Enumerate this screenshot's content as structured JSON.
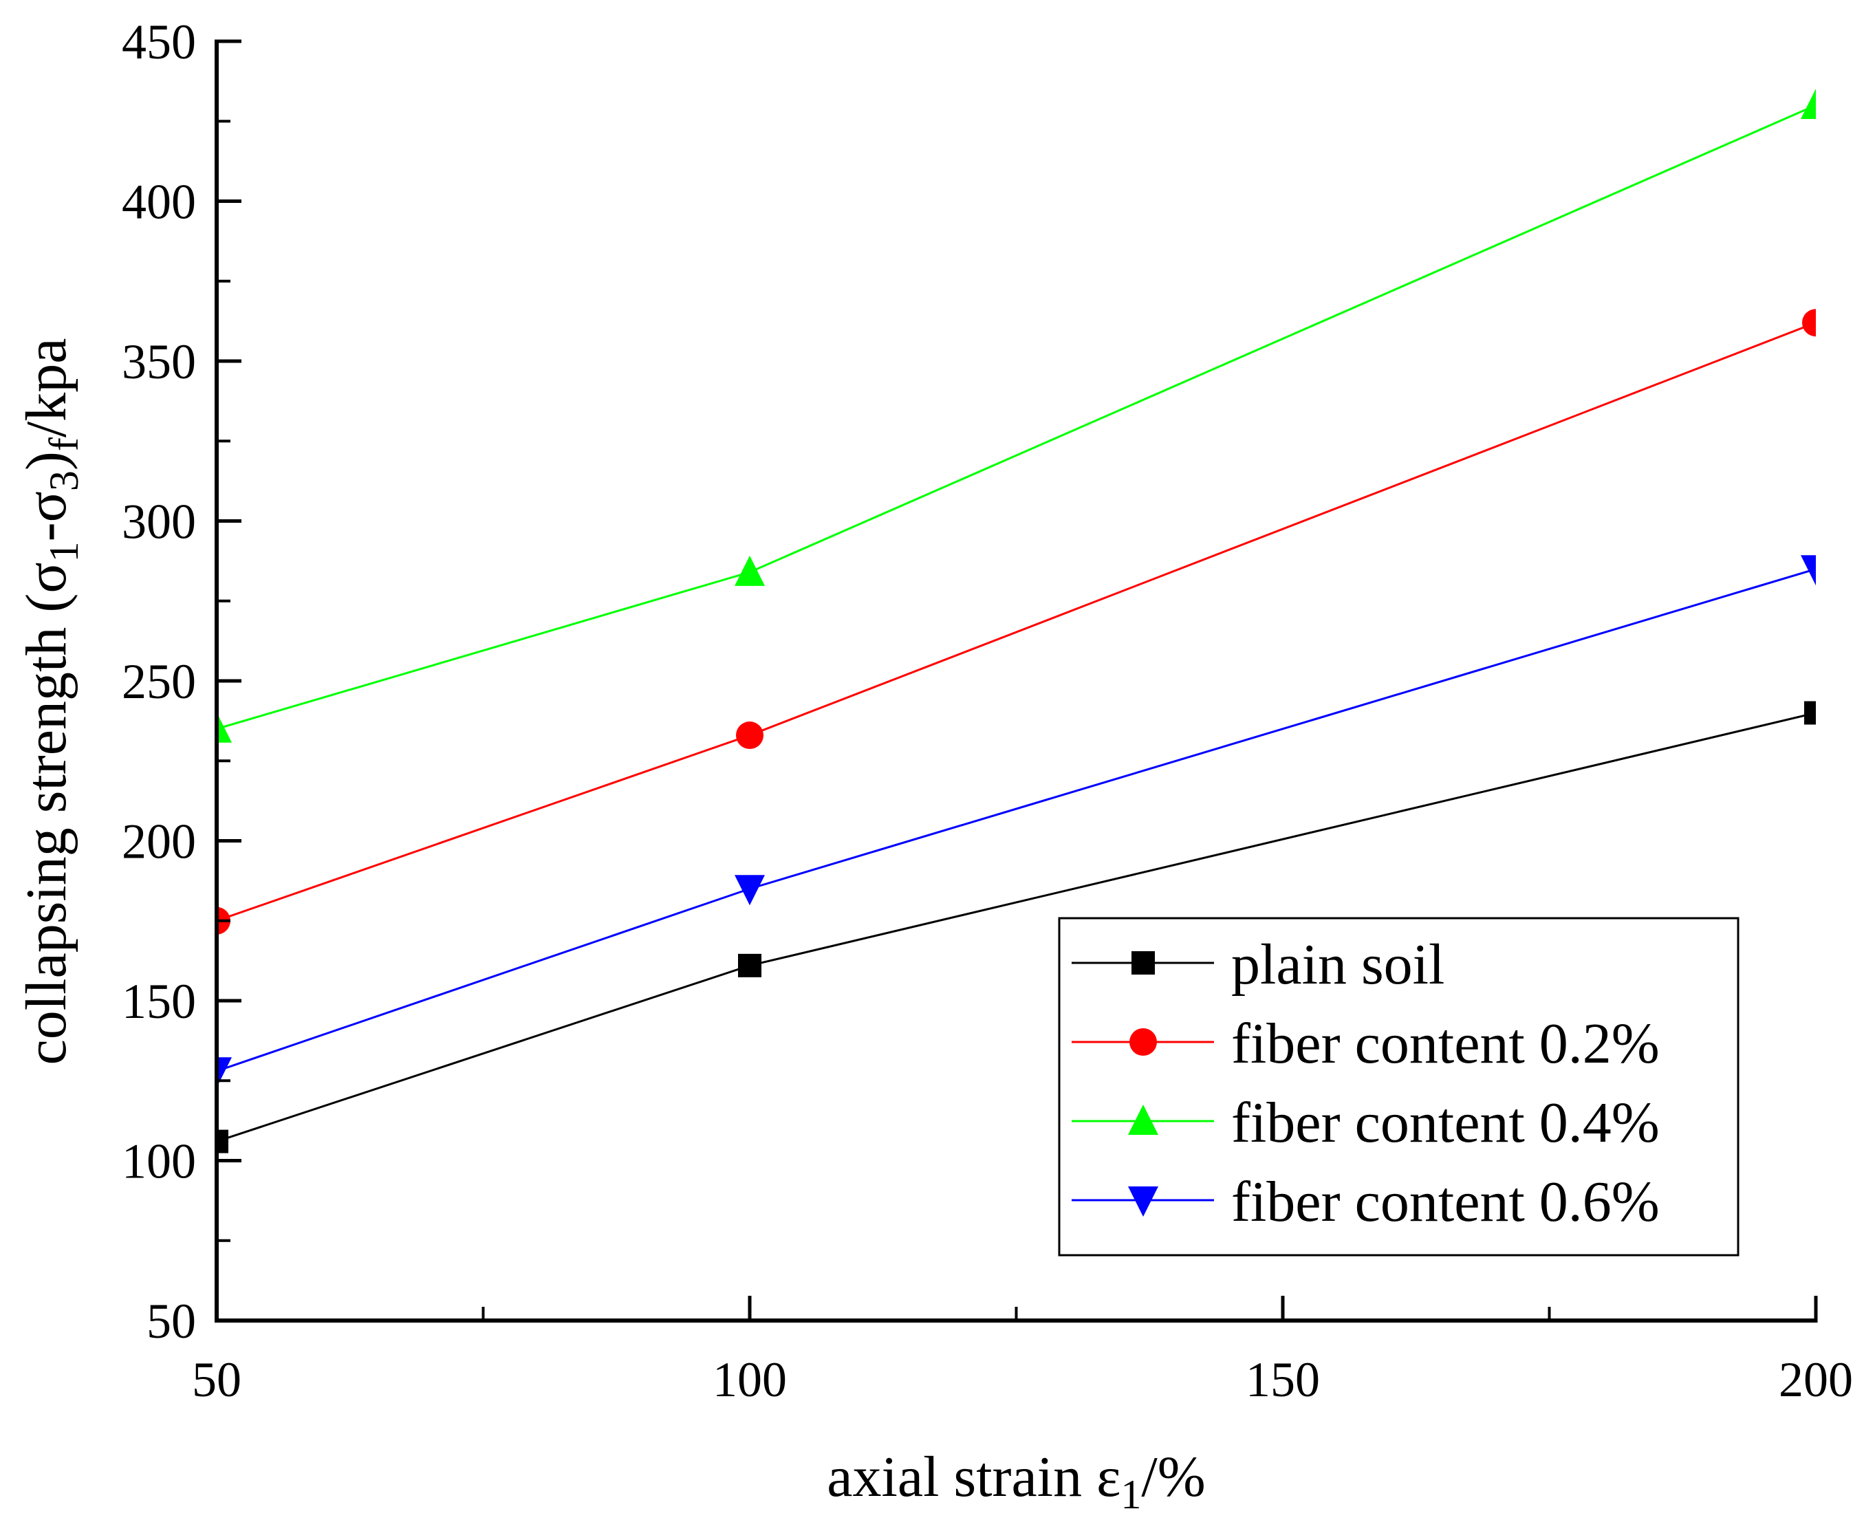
{
  "chart_data": {
    "type": "line",
    "title": "",
    "xlabel": "axial strain ε1/%",
    "xlabel_parts": {
      "main": "axial strain ε",
      "sub": "1",
      "tail": "/%"
    },
    "ylabel": "collapsing strength (σ1-σ3)f/kpa",
    "ylabel_parts": {
      "p1": "collapsing strength (σ",
      "s1": "1",
      "p2": "-σ",
      "s2": "3",
      "p3": ")",
      "s3": "f",
      "p4": "/kpa"
    },
    "xlim": [
      50,
      200
    ],
    "ylim": [
      50,
      450
    ],
    "xticks": [
      50,
      100,
      150,
      200
    ],
    "yticks": [
      50,
      100,
      150,
      200,
      250,
      300,
      350,
      400,
      450
    ],
    "x": [
      50,
      100,
      200
    ],
    "series": [
      {
        "name": "plain soil",
        "color": "#000000",
        "marker": "square",
        "values": [
          106,
          161,
          240
        ]
      },
      {
        "name": "fiber content 0.2%",
        "color": "#ff0000",
        "marker": "circle",
        "values": [
          175,
          233,
          362
        ]
      },
      {
        "name": "fiber content 0.4%",
        "color": "#00ff00",
        "marker": "triangle-up",
        "values": [
          235,
          284,
          430
        ]
      },
      {
        "name": "fiber content 0.6%",
        "color": "#0000ff",
        "marker": "triangle-down",
        "values": [
          128,
          185,
          285
        ]
      }
    ],
    "legend_position": "bottom-right",
    "grid": false
  }
}
